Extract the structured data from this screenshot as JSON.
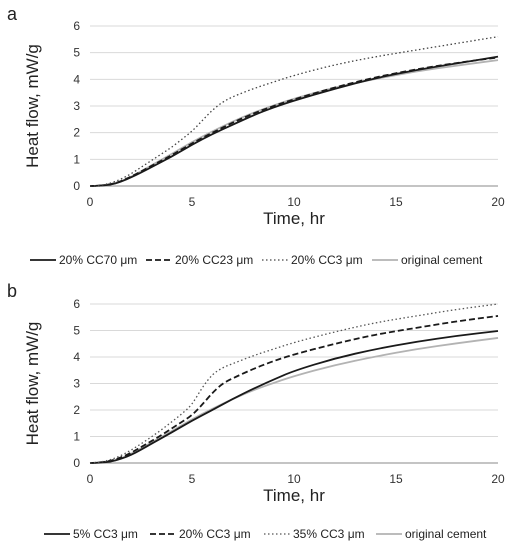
{
  "chart_data": [
    {
      "panel": "a",
      "type": "line",
      "xlabel": "Time, hr",
      "ylabel": "Heat flow, mW/g",
      "xlim": [
        0,
        20
      ],
      "ylim": [
        0,
        6
      ],
      "xticks": [
        0,
        5,
        10,
        15,
        20
      ],
      "yticks": [
        0,
        1,
        2,
        3,
        4,
        5,
        6
      ],
      "grid": "horizontal",
      "legend": "bottom",
      "series": [
        {
          "name": "20% CC70 μm",
          "color": "#1a1a1a",
          "style": "solid",
          "x": [
            0,
            0.5,
            1,
            1.5,
            2,
            2.5,
            3,
            4,
            5,
            6,
            7,
            8,
            9,
            10,
            12,
            14,
            16,
            18,
            20
          ],
          "y": [
            0,
            0.01,
            0.05,
            0.15,
            0.32,
            0.5,
            0.7,
            1.1,
            1.55,
            1.95,
            2.3,
            2.65,
            2.95,
            3.2,
            3.65,
            4.05,
            4.35,
            4.6,
            4.85
          ]
        },
        {
          "name": "20% CC23 μm",
          "color": "#1a1a1a",
          "style": "dashed",
          "x": [
            0,
            0.5,
            1,
            1.5,
            2,
            2.5,
            3,
            4,
            5,
            6,
            7,
            8,
            9,
            10,
            12,
            14,
            16,
            18,
            20
          ],
          "y": [
            0,
            0.01,
            0.06,
            0.17,
            0.35,
            0.54,
            0.75,
            1.15,
            1.6,
            2.0,
            2.38,
            2.72,
            3.0,
            3.25,
            3.7,
            4.08,
            4.38,
            4.62,
            4.82
          ]
        },
        {
          "name": "20% CC3 μm",
          "color": "#444444",
          "style": "dotted",
          "x": [
            0,
            0.5,
            1,
            1.5,
            2,
            2.5,
            3,
            3.5,
            4,
            4.5,
            5,
            5.5,
            6,
            6.5,
            7,
            8,
            9,
            10,
            12,
            14,
            16,
            18,
            20
          ],
          "y": [
            0,
            0.02,
            0.1,
            0.25,
            0.45,
            0.7,
            0.95,
            1.2,
            1.45,
            1.75,
            2.05,
            2.45,
            2.85,
            3.15,
            3.35,
            3.65,
            3.9,
            4.15,
            4.55,
            4.85,
            5.1,
            5.35,
            5.6
          ]
        },
        {
          "name": "original cement",
          "color": "#b3b3b3",
          "style": "solid",
          "x": [
            0,
            0.5,
            1,
            1.5,
            2,
            2.5,
            3,
            4,
            5,
            6,
            7,
            8,
            9,
            10,
            12,
            14,
            16,
            18,
            20
          ],
          "y": [
            0,
            0.01,
            0.05,
            0.16,
            0.34,
            0.55,
            0.77,
            1.2,
            1.65,
            2.05,
            2.42,
            2.75,
            3.02,
            3.28,
            3.7,
            4.02,
            4.3,
            4.52,
            4.72
          ]
        }
      ]
    },
    {
      "panel": "b",
      "type": "line",
      "xlabel": "Time, hr",
      "ylabel": "Heat flow, mW/g",
      "xlim": [
        0,
        20
      ],
      "ylim": [
        0,
        6
      ],
      "xticks": [
        0,
        5,
        10,
        15,
        20
      ],
      "yticks": [
        0,
        1,
        2,
        3,
        4,
        5,
        6
      ],
      "grid": "horizontal",
      "legend": "bottom",
      "series": [
        {
          "name": "5% CC3 μm",
          "color": "#1a1a1a",
          "style": "solid",
          "x": [
            0,
            0.5,
            1,
            1.5,
            2,
            2.5,
            3,
            4,
            5,
            6,
            7,
            8,
            9,
            10,
            12,
            14,
            16,
            18,
            20
          ],
          "y": [
            0,
            0.01,
            0.05,
            0.15,
            0.3,
            0.5,
            0.72,
            1.15,
            1.6,
            2.0,
            2.42,
            2.8,
            3.15,
            3.48,
            3.95,
            4.3,
            4.58,
            4.8,
            4.98
          ]
        },
        {
          "name": "20% CC3 μm",
          "color": "#1a1a1a",
          "style": "dashed",
          "x": [
            0,
            0.5,
            1,
            1.5,
            2,
            2.5,
            3,
            3.5,
            4,
            4.5,
            5,
            5.5,
            6,
            6.5,
            7,
            8,
            9,
            10,
            12,
            14,
            16,
            18,
            20
          ],
          "y": [
            0,
            0.02,
            0.08,
            0.2,
            0.38,
            0.6,
            0.82,
            1.05,
            1.3,
            1.55,
            1.8,
            2.2,
            2.65,
            3.0,
            3.2,
            3.55,
            3.85,
            4.1,
            4.5,
            4.85,
            5.1,
            5.35,
            5.55
          ]
        },
        {
          "name": "35% CC3 μm",
          "color": "#555555",
          "style": "dotted",
          "x": [
            0,
            0.5,
            1,
            1.5,
            2,
            2.5,
            3,
            3.5,
            4,
            4.5,
            5,
            5.5,
            6,
            6.5,
            7,
            8,
            9,
            10,
            12,
            14,
            16,
            18,
            20
          ],
          "y": [
            0,
            0.03,
            0.12,
            0.27,
            0.48,
            0.72,
            0.98,
            1.25,
            1.55,
            1.85,
            2.2,
            2.85,
            3.35,
            3.6,
            3.75,
            4.05,
            4.3,
            4.55,
            4.95,
            5.3,
            5.55,
            5.8,
            6.0
          ]
        },
        {
          "name": "original cement",
          "color": "#b3b3b3",
          "style": "solid",
          "x": [
            0,
            0.5,
            1,
            1.5,
            2,
            2.5,
            3,
            4,
            5,
            6,
            7,
            8,
            9,
            10,
            12,
            14,
            16,
            18,
            20
          ],
          "y": [
            0,
            0.01,
            0.05,
            0.16,
            0.34,
            0.55,
            0.77,
            1.2,
            1.65,
            2.05,
            2.42,
            2.75,
            3.02,
            3.28,
            3.7,
            4.02,
            4.3,
            4.52,
            4.72
          ]
        }
      ]
    }
  ]
}
